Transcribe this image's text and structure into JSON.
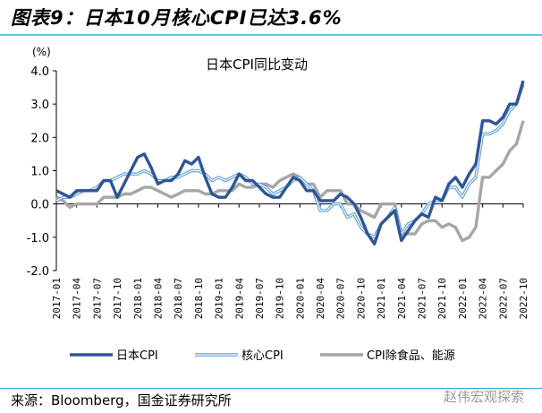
{
  "header": {
    "title": "图表9：日本10月核心CPI已达3.6%"
  },
  "footer": {
    "source": "来源：Bloomberg，国金证券研究所",
    "watermark": "赵伟宏观探索"
  },
  "chart_data": {
    "type": "line",
    "title": "日本CPI同比变动",
    "ylabel": "(%)",
    "ylim": [
      -2.0,
      4.0
    ],
    "yticks": [
      "4.0",
      "3.0",
      "2.0",
      "1.0",
      "0.0",
      "-1.0",
      "-2.0"
    ],
    "xlabels": [
      "2017-01",
      "2017-04",
      "2017-07",
      "2017-10",
      "2018-01",
      "2018-04",
      "2018-07",
      "2018-10",
      "2019-01",
      "2019-04",
      "2019-07",
      "2019-10",
      "2020-01",
      "2020-04",
      "2020-07",
      "2020-10",
      "2021-01",
      "2021-04",
      "2021-07",
      "2021-10",
      "2022-01",
      "2022-04",
      "2022-07",
      "2022-10"
    ],
    "x_start": "2017-01",
    "x_end": "2022-10",
    "frequency": "monthly",
    "legend": "bottom",
    "grid": false,
    "series": [
      {
        "name": "日本CPI",
        "color": "#2f5597",
        "style": "thick",
        "values": [
          0.4,
          0.3,
          0.2,
          0.4,
          0.4,
          0.4,
          0.4,
          0.7,
          0.7,
          0.2,
          0.6,
          1.0,
          1.4,
          1.5,
          1.1,
          0.6,
          0.7,
          0.7,
          0.9,
          1.3,
          1.2,
          1.4,
          0.8,
          0.3,
          0.2,
          0.2,
          0.5,
          0.9,
          0.7,
          0.7,
          0.5,
          0.3,
          0.2,
          0.2,
          0.5,
          0.8,
          0.7,
          0.4,
          0.4,
          0.1,
          0.1,
          0.1,
          0.3,
          0.2,
          0.0,
          -0.4,
          -0.9,
          -1.2,
          -0.6,
          -0.4,
          -0.2,
          -1.1,
          -0.8,
          -0.5,
          -0.3,
          -0.4,
          0.2,
          0.1,
          0.6,
          0.8,
          0.5,
          0.9,
          1.2,
          2.5,
          2.5,
          2.4,
          2.6,
          3.0,
          3.0,
          3.7
        ]
      },
      {
        "name": "核心CPI",
        "color": "#5b9bd5",
        "style": "double",
        "values": [
          0.1,
          0.2,
          0.2,
          0.3,
          0.4,
          0.4,
          0.5,
          0.7,
          0.7,
          0.8,
          0.9,
          0.9,
          0.9,
          1.0,
          0.9,
          0.7,
          0.7,
          0.8,
          0.8,
          0.9,
          1.0,
          1.0,
          0.9,
          0.7,
          0.8,
          0.7,
          0.8,
          0.9,
          0.8,
          0.6,
          0.6,
          0.5,
          0.3,
          0.4,
          0.5,
          0.7,
          0.8,
          0.6,
          0.4,
          -0.2,
          -0.2,
          0.0,
          0.0,
          -0.4,
          -0.3,
          -0.7,
          -0.9,
          -1.0,
          -0.6,
          -0.4,
          -0.1,
          -0.9,
          -0.6,
          -0.5,
          -0.3,
          0.0,
          0.1,
          0.1,
          0.5,
          0.5,
          0.2,
          0.6,
          0.8,
          2.1,
          2.1,
          2.2,
          2.4,
          2.8,
          3.0,
          3.6
        ]
      },
      {
        "name": "CPI除食品、能源",
        "color": "#a6a6a6",
        "style": "thick",
        "values": [
          0.2,
          0.1,
          -0.1,
          0.0,
          0.0,
          0.0,
          0.0,
          0.2,
          0.2,
          0.2,
          0.3,
          0.3,
          0.4,
          0.5,
          0.5,
          0.4,
          0.3,
          0.2,
          0.3,
          0.4,
          0.4,
          0.4,
          0.3,
          0.3,
          0.4,
          0.4,
          0.4,
          0.6,
          0.5,
          0.5,
          0.6,
          0.6,
          0.5,
          0.7,
          0.8,
          0.9,
          0.8,
          0.6,
          0.6,
          0.2,
          0.4,
          0.4,
          0.4,
          0.0,
          0.0,
          -0.2,
          -0.3,
          -0.4,
          0.0,
          0.0,
          0.0,
          -0.9,
          -0.9,
          -0.9,
          -0.6,
          -0.5,
          -0.5,
          -0.7,
          -0.6,
          -0.7,
          -1.1,
          -1.0,
          -0.7,
          0.8,
          0.8,
          1.0,
          1.2,
          1.6,
          1.8,
          2.5
        ]
      }
    ]
  }
}
